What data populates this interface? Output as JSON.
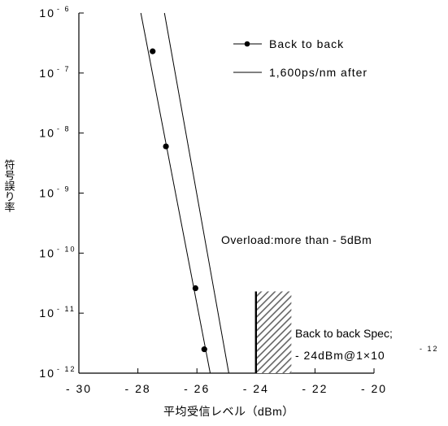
{
  "chart_data": {
    "type": "line",
    "xlabel": "平均受信レベル（dBm）",
    "ylabel": "符号誤り率",
    "xlim": [
      -30,
      -20
    ],
    "ylim": [
      1e-12,
      1e-06
    ],
    "yscale": "log",
    "x_ticks": [
      {
        "value": -30,
        "label": "- 30"
      },
      {
        "value": -28,
        "label": "- 28"
      },
      {
        "value": -26,
        "label": "- 26"
      },
      {
        "value": -24,
        "label": "- 24"
      },
      {
        "value": -22,
        "label": "- 22"
      },
      {
        "value": -20,
        "label": "- 20"
      }
    ],
    "y_ticks": [
      {
        "value": 1e-06,
        "base": "10",
        "exp": "- 6"
      },
      {
        "value": 1e-07,
        "base": "10",
        "exp": "- 7"
      },
      {
        "value": 1e-08,
        "base": "10",
        "exp": "- 8"
      },
      {
        "value": 1e-09,
        "base": "10",
        "exp": "- 9"
      },
      {
        "value": 1e-10,
        "base": "10",
        "exp": "- 10"
      },
      {
        "value": 1e-11,
        "base": "10",
        "exp": "- 11"
      },
      {
        "value": 1e-12,
        "base": "10",
        "exp": "- 12"
      }
    ],
    "series": [
      {
        "name": "Back to back",
        "style": "line-markers",
        "points": [
          {
            "x": -27.5,
            "y": 2.3e-07
          },
          {
            "x": -27.05,
            "y": 6e-09
          },
          {
            "x": -26.05,
            "y": 2.6e-11
          },
          {
            "x": -25.75,
            "y": 2.5e-12
          }
        ],
        "fit_line": [
          {
            "x": -27.9,
            "y": 1e-06
          },
          {
            "x": -25.55,
            "y": 1e-12
          }
        ]
      },
      {
        "name": "1,600ps/nm after",
        "style": "line",
        "fit_line": [
          {
            "x": -27.1,
            "y": 1e-06
          },
          {
            "x": -24.92,
            "y": 1e-12
          }
        ]
      }
    ],
    "annotations": {
      "overload": "Overload:more than  - 5dBm",
      "spec_line1": "Back to back Spec;",
      "spec_line2_main": " - 24dBm@1×10",
      "spec_line2_exp": "- 12"
    },
    "spec_region": {
      "x_from": -24,
      "x_to": -22.8,
      "y_from": 1e-12,
      "y_to": 2.3e-11
    },
    "grid": false,
    "legend_position": "top-right",
    "colors": {
      "line": "#000000",
      "marker": "#000000",
      "background": "#ffffff"
    }
  }
}
